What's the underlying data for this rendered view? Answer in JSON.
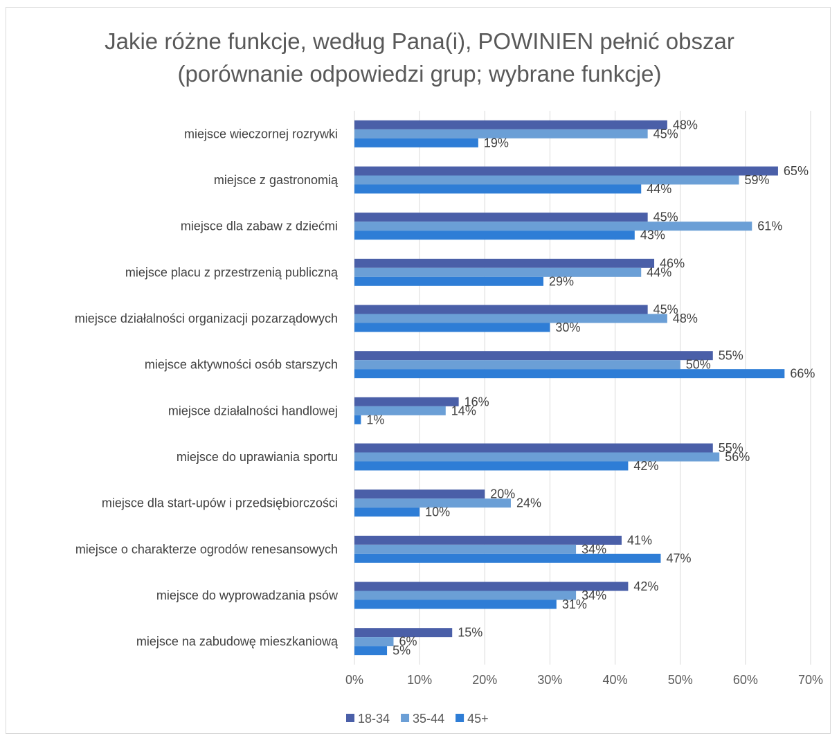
{
  "chart_data": {
    "type": "bar",
    "orientation": "horizontal",
    "title_line1": "Jakie różne funkcje, według Pana(i), POWINIEN pełnić obszar",
    "title_line2": "(porównanie odpowiedzi grup; wybrane funkcje)",
    "categories": [
      "miejsce wieczornej rozrywki",
      "miejsce z gastronomią",
      "miejsce dla zabaw z dziećmi",
      "miejsce placu z przestrzenią publiczną",
      "miejsce działalności organizacji pozarządowych",
      "miejsce aktywności osób starszych",
      "miejsce działalności handlowej",
      "miejsce do uprawiania sportu",
      "miejsce dla start-upów i przedsiębiorczości",
      "miejsce o charakterze ogrodów renesansowych",
      "miejsce do wyprowadzania psów",
      "miejsce na zabudowę mieszkaniową"
    ],
    "series": [
      {
        "name": "18-34",
        "color": "#4a5fa8",
        "values": [
          48,
          65,
          45,
          46,
          45,
          55,
          16,
          55,
          20,
          41,
          42,
          15
        ]
      },
      {
        "name": "35-44",
        "color": "#6b9fd6",
        "values": [
          45,
          59,
          61,
          44,
          48,
          50,
          14,
          56,
          24,
          34,
          34,
          6
        ]
      },
      {
        "name": "45+",
        "color": "#2e7dd6",
        "values": [
          19,
          44,
          43,
          29,
          30,
          66,
          1,
          42,
          10,
          47,
          31,
          5
        ]
      }
    ],
    "xlim": [
      0,
      70
    ],
    "xticks": [
      0,
      10,
      20,
      30,
      40,
      50,
      60,
      70
    ],
    "tick_labels": [
      "0%",
      "10%",
      "20%",
      "30%",
      "40%",
      "50%",
      "60%",
      "70%"
    ],
    "value_suffix": "%",
    "grid": "vertical",
    "legend_position": "bottom"
  }
}
